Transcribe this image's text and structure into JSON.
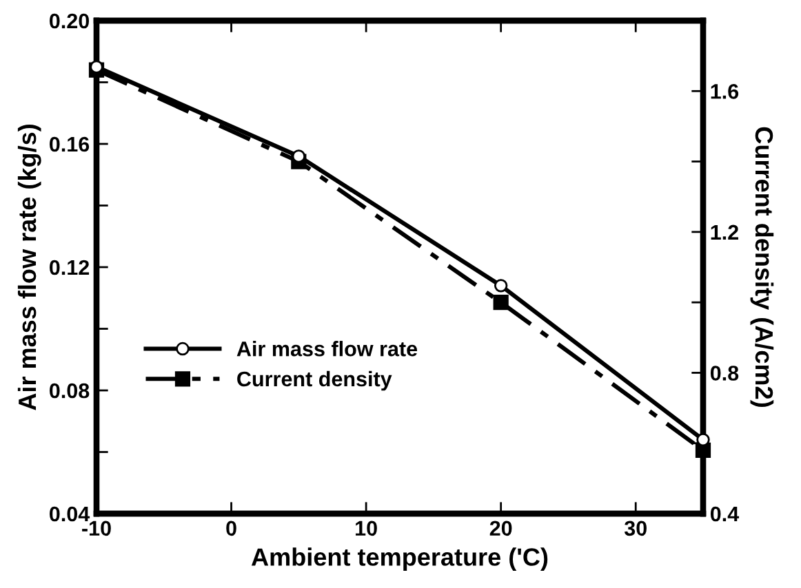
{
  "chart_data": {
    "type": "line",
    "xlabel": "Ambient temperature ('C)",
    "ylabel": "Air mass flow rate (kg/s)",
    "y2label": "Current density (A/cm2)",
    "x": [
      -10,
      5,
      20,
      35
    ],
    "series": [
      {
        "name": "Air mass flow rate",
        "color": "#000000",
        "values": [
          0.185,
          0.156,
          0.114,
          0.064
        ],
        "marker": "circle",
        "line_style": "solid"
      },
      {
        "name": "Current density",
        "color": "#000000",
        "values": [
          1.66,
          1.4,
          1.0,
          0.58
        ],
        "marker": "square",
        "line_style": "dashed",
        "axis": "y2"
      }
    ],
    "xlim": [
      -10,
      35
    ],
    "xticks": [
      -10,
      0,
      10,
      20,
      30
    ],
    "ylim": [
      0.04,
      0.2
    ],
    "yticks": [
      0.04,
      {
        "value": 0.06,
        "label": null
      },
      0.08,
      {
        "value": 0.1,
        "label": null
      },
      0.12,
      {
        "value": 0.14,
        "label": null
      },
      0.16,
      {
        "value": 0.18,
        "label": null
      },
      {
        "value": 0.2,
        "label": "0.20"
      }
    ],
    "y2lim": [
      0.4,
      1.8
    ],
    "y2ticks": [
      0.4,
      {
        "value": 0.6,
        "label": null
      },
      0.8,
      {
        "value": 1.0,
        "label": null
      },
      1.2,
      {
        "value": 1.4,
        "label": null
      },
      1.6
    ],
    "grid": false,
    "legend": "left"
  }
}
